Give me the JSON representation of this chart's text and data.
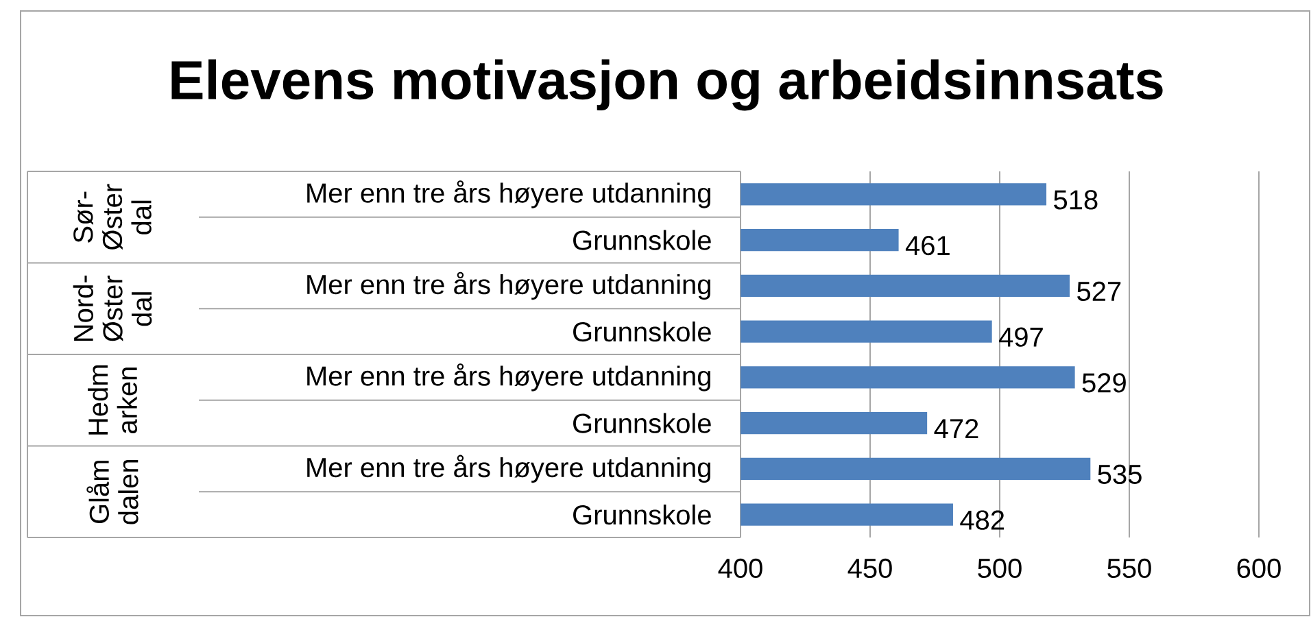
{
  "chart_data": {
    "type": "bar",
    "orientation": "horizontal",
    "title": "Elevens motivasjon og arbeidsinnsats",
    "categories": [
      "Mer enn tre års høyere utdanning",
      "Grunnskole",
      "Mer enn tre års høyere utdanning",
      "Grunnskole",
      "Mer enn tre års høyere utdanning",
      "Grunnskole",
      "Mer enn tre års høyere utdanning",
      "Grunnskole"
    ],
    "values": [
      518,
      461,
      527,
      497,
      529,
      472,
      535,
      482
    ],
    "color": "#4f81bd",
    "annotations": [
      "Sør-Øster dal",
      "Nord-Øster dal",
      "Hedm arken",
      "Glåm dalen"
    ],
    "xlim": [
      400,
      600
    ],
    "xticks": [
      400,
      450,
      500,
      550,
      600
    ],
    "grid": "x",
    "data_labels": true
  }
}
